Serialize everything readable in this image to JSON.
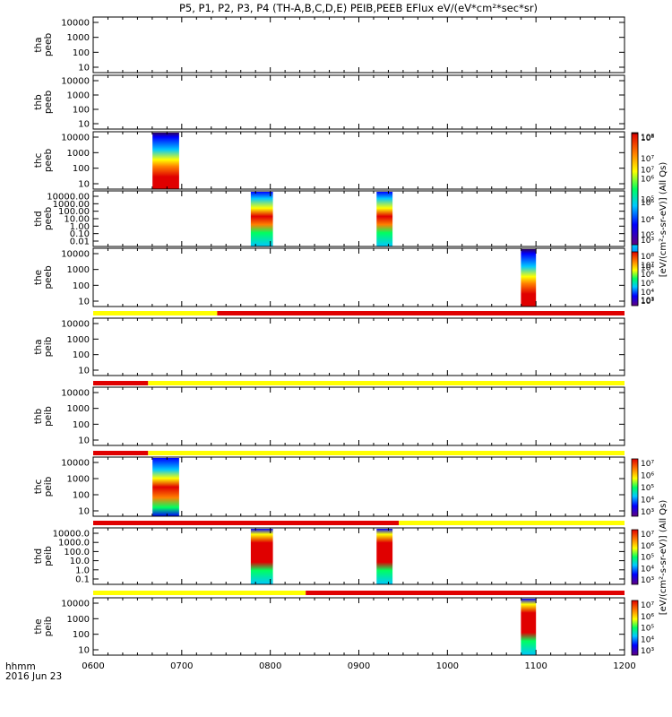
{
  "chart_data": {
    "type": "heatmap",
    "title": "P5, P1, P2, P3, P4 (TH-A,B,C,D,E) PEIB,PEEB EFlux eV/(eV*cm²*sec*sr)",
    "xlabel_line1": "hhmm",
    "xlabel_line2": "2016 Jun 23",
    "x_tick_labels": [
      "0600",
      "0700",
      "0800",
      "0900",
      "1000",
      "1100",
      "1200"
    ],
    "x_range_hours": [
      6,
      12
    ],
    "y_scale": "log",
    "colorbar_label_electron": "[eV/(cm²-s-sr-eV)] (All Qs)",
    "colorbar_label_ion": "[eV/(cm²-s-sr-eV)] (All Qs)",
    "colorscale": [
      "#600080",
      "#0000ff",
      "#00c8ff",
      "#00ff60",
      "#ffff00",
      "#ff8000",
      "#e00000"
    ],
    "panels": [
      {
        "probe": "tha",
        "product": "peeb",
        "y_label_1": "tha",
        "y_label_2": "peeb",
        "y_ticks": [
          "10000",
          "1000",
          "100",
          "10"
        ],
        "bursts": [],
        "colorbar_ticks": []
      },
      {
        "probe": "thb",
        "product": "peeb",
        "y_label_1": "thb",
        "y_label_2": "peeb",
        "y_ticks": [
          "10000",
          "1000",
          "100",
          "10"
        ],
        "bursts": [],
        "colorbar_ticks": []
      },
      {
        "probe": "thc",
        "product": "peeb",
        "y_label_1": "thc",
        "y_label_2": "peeb",
        "y_ticks": [
          "10000",
          "1000",
          "100",
          "10"
        ],
        "bursts": [
          {
            "start": 6.67,
            "end": 6.97
          }
        ],
        "colorbar_ticks": [
          "10⁸",
          "10⁷",
          "10⁶",
          "10⁵",
          "10⁴",
          "10³"
        ]
      },
      {
        "probe": "thd",
        "product": "peeb",
        "y_label_1": "thd",
        "y_label_2": "peeb",
        "y_ticks": [
          "10000.00",
          "1000.00",
          "100.00",
          "10.00",
          "1.00",
          "0.10",
          "0.01"
        ],
        "bursts": [
          {
            "start": 7.78,
            "end": 8.03
          },
          {
            "start": 9.2,
            "end": 9.38
          }
        ],
        "colorbar_ticks": [
          "10⁸",
          "10⁷",
          "10⁶",
          "10⁵",
          "10⁴",
          "10³"
        ]
      },
      {
        "probe": "the",
        "product": "peeb",
        "y_label_1": "the",
        "y_label_2": "peeb",
        "y_ticks": [
          "10000",
          "1000",
          "100",
          "10"
        ],
        "bursts": [
          {
            "start": 10.83,
            "end": 11.0
          }
        ],
        "colorbar_ticks": [
          "10⁸",
          "10⁷",
          "10⁶",
          "10⁵",
          "10⁴",
          "10³"
        ]
      },
      {
        "probe": "tha",
        "product": "peib",
        "y_label_1": "tha",
        "y_label_2": "peib",
        "y_ticks": [
          "10000",
          "1000",
          "100",
          "10"
        ],
        "bursts": [],
        "colorbar_ticks": []
      },
      {
        "probe": "thb",
        "product": "peib",
        "y_label_1": "thb",
        "y_label_2": "peib",
        "y_ticks": [
          "10000",
          "1000",
          "100",
          "10"
        ],
        "bursts": [],
        "colorbar_ticks": []
      },
      {
        "probe": "thc",
        "product": "peib",
        "y_label_1": "thc",
        "y_label_2": "peib",
        "y_ticks": [
          "10000",
          "1000",
          "100",
          "10"
        ],
        "bursts": [
          {
            "start": 6.67,
            "end": 6.97
          }
        ],
        "colorbar_ticks": [
          "10⁷",
          "10⁶",
          "10⁵",
          "10⁴",
          "10³"
        ]
      },
      {
        "probe": "thd",
        "product": "peib",
        "y_label_1": "thd",
        "y_label_2": "peib",
        "y_ticks": [
          "10000.0",
          "1000.0",
          "100.0",
          "10.0",
          "1.0",
          "0.1"
        ],
        "bursts": [
          {
            "start": 7.78,
            "end": 8.03
          },
          {
            "start": 9.2,
            "end": 9.38
          }
        ],
        "colorbar_ticks": [
          "10⁷",
          "10⁶",
          "10⁵",
          "10⁴",
          "10³"
        ]
      },
      {
        "probe": "the",
        "product": "peib",
        "y_label_1": "the",
        "y_label_2": "peib",
        "y_ticks": [
          "10000",
          "1000",
          "100",
          "10"
        ],
        "bursts": [
          {
            "start": 10.83,
            "end": 11.0
          }
        ],
        "colorbar_ticks": [
          "10⁷",
          "10⁶",
          "10⁵",
          "10⁴",
          "10³"
        ]
      }
    ],
    "mode_bars": [
      {
        "segments": [
          {
            "start": 6.0,
            "end": 7.4,
            "color": "#ffff00"
          },
          {
            "start": 7.4,
            "end": 12.0,
            "color": "#e00000"
          }
        ]
      },
      {
        "segments": [
          {
            "start": 6.0,
            "end": 6.62,
            "color": "#e00000"
          },
          {
            "start": 6.62,
            "end": 12.0,
            "color": "#ffff00"
          }
        ]
      },
      {
        "segments": [
          {
            "start": 6.0,
            "end": 6.62,
            "color": "#e00000"
          },
          {
            "start": 6.62,
            "end": 12.0,
            "color": "#ffff00"
          }
        ]
      },
      {
        "segments": [
          {
            "start": 6.0,
            "end": 9.45,
            "color": "#e00000"
          },
          {
            "start": 9.45,
            "end": 12.0,
            "color": "#ffff00"
          }
        ]
      },
      {
        "segments": [
          {
            "start": 6.0,
            "end": 8.4,
            "color": "#ffff00"
          },
          {
            "start": 8.4,
            "end": 12.0,
            "color": "#e00000"
          }
        ]
      }
    ]
  }
}
